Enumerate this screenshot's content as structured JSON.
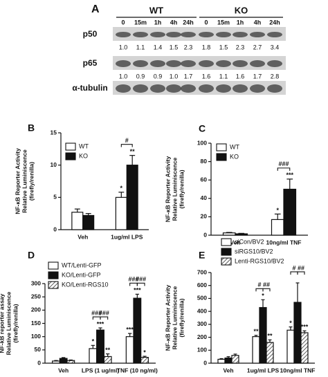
{
  "blot": {
    "label": "A",
    "groups": [
      "WT",
      "KO"
    ],
    "timepoints": [
      "0",
      "15m",
      "1h",
      "4h",
      "24h",
      "0",
      "15m",
      "1h",
      "4h",
      "24h"
    ],
    "rows": [
      {
        "name": "p50",
        "values": [
          "1.0",
          "1.1",
          "1.4",
          "1.5",
          "2.3",
          "1.8",
          "1.5",
          "2.3",
          "2.7",
          "3.4"
        ]
      },
      {
        "name": "p65",
        "values": [
          "1.0",
          "0.9",
          "0.9",
          "1.0",
          "1.7",
          "1.6",
          "1.1",
          "1.6",
          "1.7",
          "2.8"
        ]
      },
      {
        "name": "α-tubulin"
      }
    ]
  },
  "chart_data": [
    {
      "type": "bar",
      "label": "B",
      "ylabel": [
        "NF-κB Reporter Activity",
        "Relative Luminiscence",
        "(firefly/renilla)"
      ],
      "categories": [
        "Veh",
        "1ug/ml LPS"
      ],
      "series": [
        {
          "name": "WT",
          "color": "#ffffff",
          "values": [
            2.7,
            5.0
          ],
          "errors": [
            0.5,
            0.8
          ],
          "marks": [
            null,
            "*"
          ]
        },
        {
          "name": "KO",
          "color": "#111111",
          "values": [
            2.2,
            10.0
          ],
          "errors": [
            0.3,
            1.5
          ],
          "marks": [
            null,
            "**"
          ]
        }
      ],
      "bracket_labels": [
        null,
        [
          "#"
        ]
      ],
      "ylim": [
        0,
        15
      ],
      "yticks": [
        0,
        5,
        10,
        15
      ]
    },
    {
      "type": "bar",
      "label": "C",
      "ylabel": [
        "NF-κB Reporter Activity",
        "Relative Luminiscence",
        "(firefly/renilla)"
      ],
      "categories": [
        "Veh",
        "10ng/ml TNF"
      ],
      "series": [
        {
          "name": "WT",
          "color": "#ffffff",
          "values": [
            2.5,
            17
          ],
          "errors": [
            0.5,
            6
          ],
          "marks": [
            null,
            "*"
          ]
        },
        {
          "name": "KO",
          "color": "#111111",
          "values": [
            1.5,
            50
          ],
          "errors": [
            0.5,
            11
          ],
          "marks": [
            null,
            "***"
          ]
        }
      ],
      "bracket_labels": [
        null,
        [
          "###"
        ]
      ],
      "ylim": [
        0,
        100
      ],
      "yticks": [
        0,
        20,
        40,
        60,
        80,
        100
      ]
    },
    {
      "type": "bar",
      "label": "D",
      "ylabel": [
        "NF-kB reporter assay",
        "Relative Luminiscence",
        "(firefly/renilla)"
      ],
      "categories": [
        "Veh",
        "LPS (1 ug/ml)",
        "TNF (10 ng/ml)"
      ],
      "series": [
        {
          "name": "WT/Lenti-GFP",
          "color": "#ffffff",
          "values": [
            8,
            55,
            100
          ],
          "errors": [
            2,
            12,
            12
          ],
          "marks": [
            null,
            "*",
            "***"
          ]
        },
        {
          "name": "KO/Lenti-GFP",
          "color": "#111111",
          "values": [
            18,
            125,
            245
          ],
          "errors": [
            3,
            8,
            15
          ],
          "marks": [
            null,
            "***",
            "***"
          ]
        },
        {
          "name": "KO/Lenti-RGS10",
          "color": "#aaaaaa",
          "pattern": "hatch",
          "values": [
            10,
            25,
            22
          ],
          "errors": [
            2,
            10,
            4
          ],
          "marks": [
            null,
            "**",
            "*"
          ]
        }
      ],
      "bracket_labels": [
        null,
        [
          "###",
          "###"
        ],
        [
          "###",
          "###"
        ]
      ],
      "ylim": [
        0,
        300
      ],
      "yticks": [
        0,
        50,
        100,
        150,
        200,
        250,
        300
      ]
    },
    {
      "type": "bar",
      "label": "E",
      "ylabel": [
        "NF-κB Reporter Activity",
        "Relative Luminiscence",
        "(firefly/renilla)"
      ],
      "categories": [
        "Veh",
        "1ug/ml LPS",
        "10ng/ml TNF"
      ],
      "series": [
        {
          "name": "siCon/BV2",
          "color": "#ffffff",
          "values": [
            30,
            205,
            255
          ],
          "errors": [
            5,
            10,
            25
          ],
          "marks": [
            null,
            "**",
            "*"
          ]
        },
        {
          "name": "siRGS10/BV2",
          "color": "#111111",
          "values": [
            40,
            430,
            470
          ],
          "errors": [
            10,
            60,
            150
          ],
          "marks": [
            null,
            "*",
            null
          ]
        },
        {
          "name": "Lenti-RGS10/BV2",
          "color": "#aaaaaa",
          "pattern": "hatch",
          "values": [
            60,
            160,
            235
          ],
          "errors": [
            10,
            20,
            15
          ],
          "marks": [
            null,
            "**",
            "***"
          ]
        }
      ],
      "bracket_labels": [
        null,
        [
          "#",
          "##"
        ],
        [
          "#",
          "##"
        ]
      ],
      "ylim": [
        0,
        700
      ],
      "yticks": [
        0,
        100,
        200,
        300,
        400,
        500,
        600,
        700
      ]
    }
  ]
}
